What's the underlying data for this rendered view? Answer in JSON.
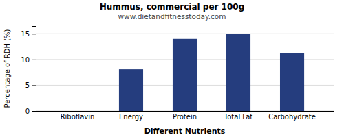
{
  "chart_data": {
    "type": "bar",
    "title": "Hummus, commercial per 100g",
    "subtitle": "www.dietandfitnesstoday.com",
    "xlabel": "Different Nutrients",
    "ylabel": "Percentage of RDH (%)",
    "categories": [
      "Riboflavin",
      "Energy",
      "Protein",
      "Total Fat",
      "Carbohydrate"
    ],
    "values": [
      0,
      8.1,
      14.0,
      15.0,
      11.3
    ],
    "color": "#253d7e",
    "ylim": [
      0,
      16.5
    ],
    "yticks": [
      0,
      5,
      10,
      15
    ],
    "grid": true
  }
}
